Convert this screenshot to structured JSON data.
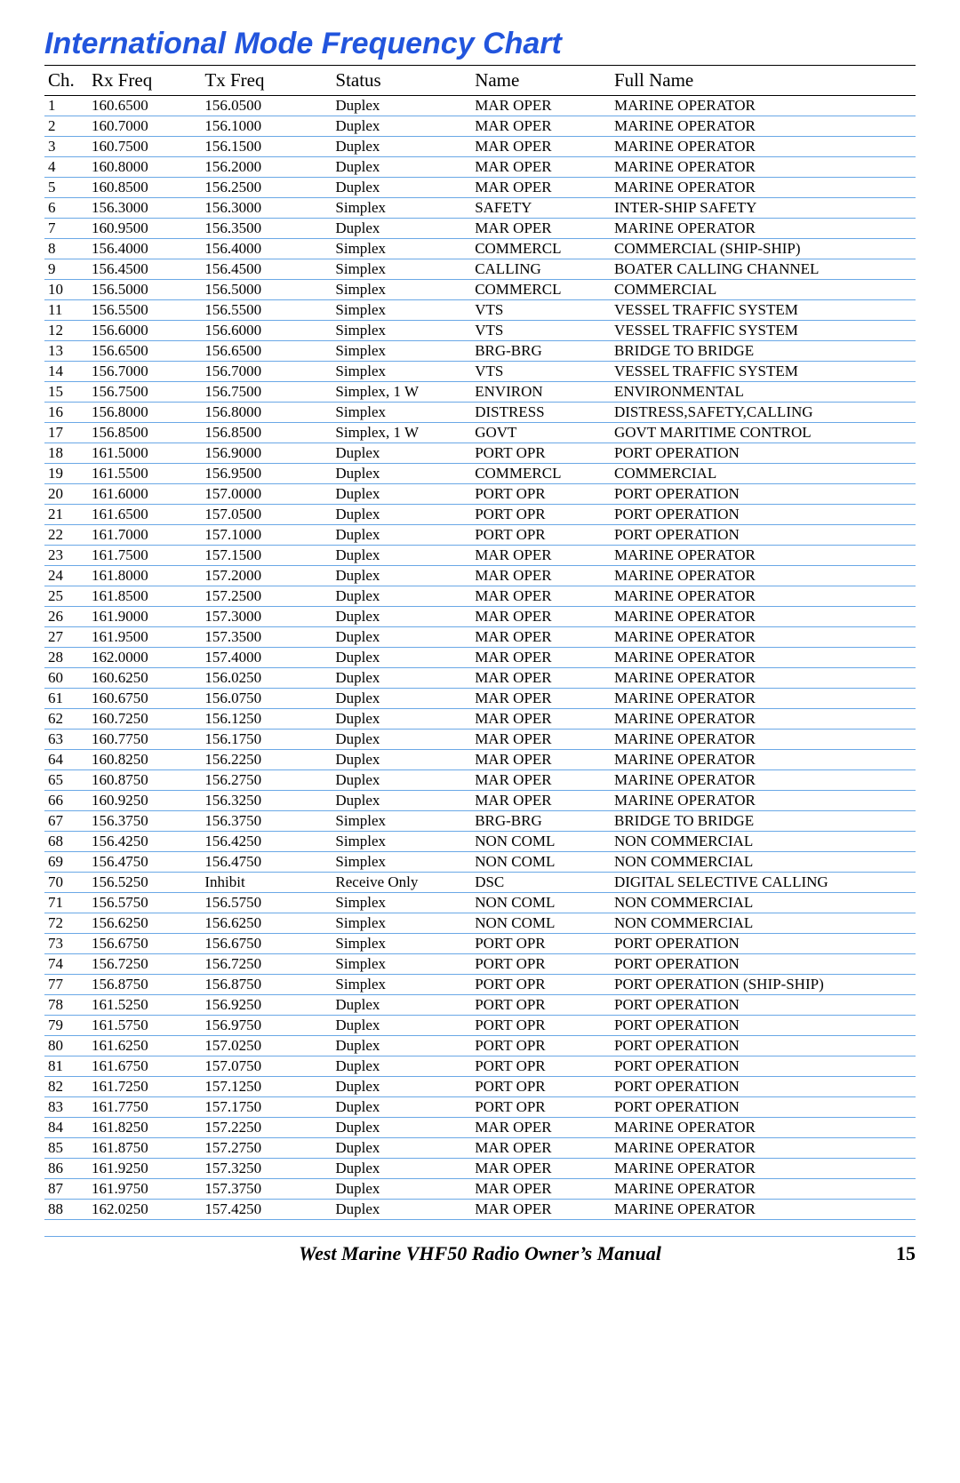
{
  "title": "International Mode Frequency Chart",
  "title_color": "#2255dd",
  "row_border_color": "#6aa8e6",
  "columns": [
    "Ch.",
    "Rx Freq",
    "Tx Freq",
    "Status",
    "Name",
    "Full Name"
  ],
  "rows": [
    [
      "1",
      "160.6500",
      "156.0500",
      "Duplex",
      "MAR OPER",
      "MARINE OPERATOR"
    ],
    [
      "2",
      "160.7000",
      "156.1000",
      "Duplex",
      "MAR OPER",
      "MARINE OPERATOR"
    ],
    [
      "3",
      "160.7500",
      "156.1500",
      "Duplex",
      "MAR OPER",
      "MARINE OPERATOR"
    ],
    [
      "4",
      "160.8000",
      "156.2000",
      "Duplex",
      "MAR OPER",
      "MARINE OPERATOR"
    ],
    [
      "5",
      "160.8500",
      "156.2500",
      "Duplex",
      "MAR OPER",
      "MARINE OPERATOR"
    ],
    [
      "6",
      "156.3000",
      "156.3000",
      "Simplex",
      "SAFETY",
      "INTER-SHIP SAFETY"
    ],
    [
      "7",
      "160.9500",
      "156.3500",
      "Duplex",
      "MAR OPER",
      "MARINE OPERATOR"
    ],
    [
      "8",
      "156.4000",
      "156.4000",
      "Simplex",
      "COMMERCL",
      "COMMERCIAL (SHIP-SHIP)"
    ],
    [
      "9",
      "156.4500",
      "156.4500",
      "Simplex",
      "CALLING",
      "BOATER CALLING CHANNEL"
    ],
    [
      "10",
      "156.5000",
      "156.5000",
      "Simplex",
      "COMMERCL",
      "COMMERCIAL"
    ],
    [
      "11",
      "156.5500",
      "156.5500",
      "Simplex",
      "VTS",
      "VESSEL TRAFFIC SYSTEM"
    ],
    [
      "12",
      "156.6000",
      "156.6000",
      "Simplex",
      "VTS",
      "VESSEL TRAFFIC SYSTEM"
    ],
    [
      "13",
      "156.6500",
      "156.6500",
      "Simplex",
      "BRG-BRG",
      "BRIDGE TO BRIDGE"
    ],
    [
      "14",
      "156.7000",
      "156.7000",
      "Simplex",
      "VTS",
      "VESSEL TRAFFIC SYSTEM"
    ],
    [
      "15",
      "156.7500",
      "156.7500",
      "Simplex, 1 W",
      "ENVIRON",
      "ENVIRONMENTAL"
    ],
    [
      "16",
      "156.8000",
      "156.8000",
      "Simplex",
      "DISTRESS",
      "DISTRESS,SAFETY,CALLING"
    ],
    [
      "17",
      "156.8500",
      "156.8500",
      "Simplex, 1 W",
      "GOVT",
      "GOVT MARITIME CONTROL"
    ],
    [
      "18",
      "161.5000",
      "156.9000",
      "Duplex",
      "PORT OPR",
      "PORT OPERATION"
    ],
    [
      "19",
      "161.5500",
      "156.9500",
      "Duplex",
      "COMMERCL",
      "COMMERCIAL"
    ],
    [
      "20",
      "161.6000",
      "157.0000",
      "Duplex",
      "PORT OPR",
      "PORT OPERATION"
    ],
    [
      "21",
      "161.6500",
      "157.0500",
      "Duplex",
      "PORT OPR",
      "PORT OPERATION"
    ],
    [
      "22",
      "161.7000",
      "157.1000",
      "Duplex",
      "PORT OPR",
      "PORT OPERATION"
    ],
    [
      "23",
      "161.7500",
      "157.1500",
      "Duplex",
      "MAR OPER",
      "MARINE OPERATOR"
    ],
    [
      "24",
      "161.8000",
      "157.2000",
      "Duplex",
      "MAR OPER",
      "MARINE OPERATOR"
    ],
    [
      "25",
      "161.8500",
      "157.2500",
      "Duplex",
      "MAR OPER",
      "MARINE OPERATOR"
    ],
    [
      "26",
      "161.9000",
      "157.3000",
      "Duplex",
      "MAR OPER",
      "MARINE OPERATOR"
    ],
    [
      "27",
      "161.9500",
      "157.3500",
      "Duplex",
      "MAR OPER",
      "MARINE OPERATOR"
    ],
    [
      "28",
      "162.0000",
      "157.4000",
      "Duplex",
      "MAR OPER",
      "MARINE OPERATOR"
    ],
    [
      "60",
      "160.6250",
      "156.0250",
      "Duplex",
      "MAR OPER",
      "MARINE OPERATOR"
    ],
    [
      "61",
      "160.6750",
      "156.0750",
      "Duplex",
      "MAR OPER",
      "MARINE OPERATOR"
    ],
    [
      "62",
      "160.7250",
      "156.1250",
      "Duplex",
      "MAR OPER",
      "MARINE OPERATOR"
    ],
    [
      "63",
      "160.7750",
      "156.1750",
      "Duplex",
      "MAR OPER",
      "MARINE OPERATOR"
    ],
    [
      "64",
      "160.8250",
      "156.2250",
      "Duplex",
      "MAR OPER",
      "MARINE OPERATOR"
    ],
    [
      "65",
      "160.8750",
      "156.2750",
      "Duplex",
      "MAR OPER",
      "MARINE OPERATOR"
    ],
    [
      "66",
      "160.9250",
      "156.3250",
      "Duplex",
      "MAR OPER",
      "MARINE OPERATOR"
    ],
    [
      "67",
      "156.3750",
      "156.3750",
      "Simplex",
      "BRG-BRG",
      "BRIDGE TO BRIDGE"
    ],
    [
      "68",
      "156.4250",
      "156.4250",
      "Simplex",
      "NON COML",
      "NON COMMERCIAL"
    ],
    [
      "69",
      "156.4750",
      "156.4750",
      "Simplex",
      "NON COML",
      "NON COMMERCIAL"
    ],
    [
      "70",
      "156.5250",
      "Inhibit",
      "Receive Only",
      "DSC",
      "DIGITAL SELECTIVE CALLING"
    ],
    [
      "71",
      "156.5750",
      "156.5750",
      "Simplex",
      "NON COML",
      "NON COMMERCIAL"
    ],
    [
      "72",
      "156.6250",
      "156.6250",
      "Simplex",
      "NON COML",
      "NON COMMERCIAL"
    ],
    [
      "73",
      "156.6750",
      "156.6750",
      "Simplex",
      "PORT OPR",
      "PORT OPERATION"
    ],
    [
      "74",
      "156.7250",
      "156.7250",
      "Simplex",
      "PORT OPR",
      "PORT OPERATION"
    ],
    [
      "77",
      "156.8750",
      "156.8750",
      "Simplex",
      "PORT OPR",
      "PORT OPERATION (SHIP-SHIP)"
    ],
    [
      "78",
      "161.5250",
      "156.9250",
      "Duplex",
      "PORT OPR",
      "PORT OPERATION"
    ],
    [
      "79",
      "161.5750",
      "156.9750",
      "Duplex",
      "PORT OPR",
      "PORT OPERATION"
    ],
    [
      "80",
      "161.6250",
      "157.0250",
      "Duplex",
      "PORT OPR",
      "PORT OPERATION"
    ],
    [
      "81",
      "161.6750",
      "157.0750",
      "Duplex",
      "PORT OPR",
      "PORT OPERATION"
    ],
    [
      "82",
      "161.7250",
      "157.1250",
      "Duplex",
      "PORT OPR",
      "PORT OPERATION"
    ],
    [
      "83",
      "161.7750",
      "157.1750",
      "Duplex",
      "PORT OPR",
      "PORT OPERATION"
    ],
    [
      "84",
      "161.8250",
      "157.2250",
      "Duplex",
      "MAR OPER",
      "MARINE OPERATOR"
    ],
    [
      "85",
      "161.8750",
      "157.2750",
      "Duplex",
      "MAR OPER",
      "MARINE OPERATOR"
    ],
    [
      "86",
      "161.9250",
      "157.3250",
      "Duplex",
      "MAR OPER",
      "MARINE OPERATOR"
    ],
    [
      "87",
      "161.9750",
      "157.3750",
      "Duplex",
      "MAR OPER",
      "MARINE OPERATOR"
    ],
    [
      "88",
      "162.0250",
      "157.4250",
      "Duplex",
      "MAR OPER",
      "MARINE OPERATOR"
    ]
  ],
  "footer": {
    "title": "West Marine VHF50 Radio Owner’s Manual",
    "page": "15"
  }
}
